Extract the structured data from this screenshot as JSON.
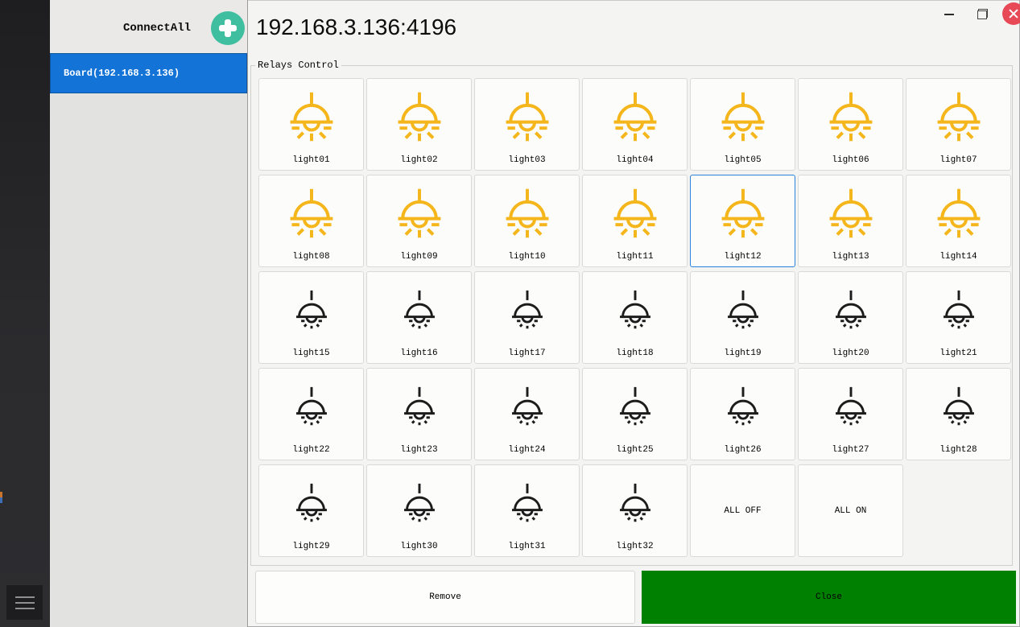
{
  "window": {
    "title": "192.168.3.136:4196",
    "titlebar_icons": [
      "minimize-icon",
      "restore-icon",
      "close-icon"
    ]
  },
  "left_panel": {
    "connect_all_label": "ConnectAll",
    "add_button_icon": "plus-icon",
    "board_item_label": "Board(192.168.3.136)"
  },
  "sidebar": {
    "menu_icon": "hamburger-menu-icon"
  },
  "relays": {
    "group_label": "Relays Control",
    "selected_light": "light12",
    "lights": [
      {
        "label": "light01",
        "state": "on"
      },
      {
        "label": "light02",
        "state": "on"
      },
      {
        "label": "light03",
        "state": "on"
      },
      {
        "label": "light04",
        "state": "on"
      },
      {
        "label": "light05",
        "state": "on"
      },
      {
        "label": "light06",
        "state": "on"
      },
      {
        "label": "light07",
        "state": "on"
      },
      {
        "label": "light08",
        "state": "on"
      },
      {
        "label": "light09",
        "state": "on"
      },
      {
        "label": "light10",
        "state": "on"
      },
      {
        "label": "light11",
        "state": "on"
      },
      {
        "label": "light12",
        "state": "on"
      },
      {
        "label": "light13",
        "state": "on"
      },
      {
        "label": "light14",
        "state": "on"
      },
      {
        "label": "light15",
        "state": "off"
      },
      {
        "label": "light16",
        "state": "off"
      },
      {
        "label": "light17",
        "state": "off"
      },
      {
        "label": "light18",
        "state": "off"
      },
      {
        "label": "light19",
        "state": "off"
      },
      {
        "label": "light20",
        "state": "off"
      },
      {
        "label": "light21",
        "state": "off"
      },
      {
        "label": "light22",
        "state": "off"
      },
      {
        "label": "light23",
        "state": "off"
      },
      {
        "label": "light24",
        "state": "off"
      },
      {
        "label": "light25",
        "state": "off"
      },
      {
        "label": "light26",
        "state": "off"
      },
      {
        "label": "light27",
        "state": "off"
      },
      {
        "label": "light28",
        "state": "off"
      },
      {
        "label": "light29",
        "state": "off"
      },
      {
        "label": "light30",
        "state": "off"
      },
      {
        "label": "light31",
        "state": "off"
      },
      {
        "label": "light32",
        "state": "off"
      }
    ],
    "all_off_label": "ALL OFF",
    "all_on_label": "ALL ON"
  },
  "footer": {
    "remove_label": "Remove",
    "close_label": "Close"
  },
  "colors": {
    "light_on": "#F5B61C",
    "light_off": "#1C1C1C",
    "selected_border": "#2A82DD",
    "board_blue": "#1373D6",
    "close_green": "#008000",
    "titlebar_close_red": "#E74956",
    "add_button_green": "#3FBF9F"
  }
}
